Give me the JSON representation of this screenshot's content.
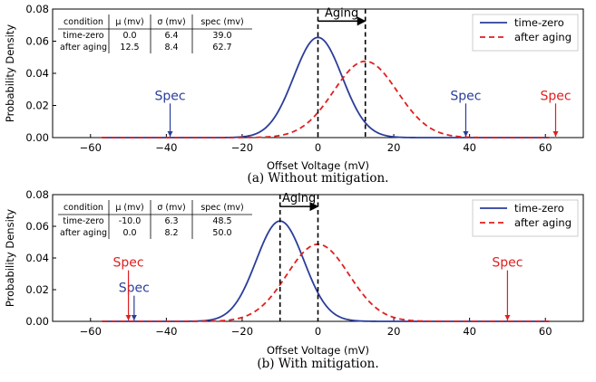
{
  "chart_data": [
    {
      "type": "line",
      "caption": "(a) Without mitigation.",
      "xlabel": "Offset Voltage (mV)",
      "ylabel": "Probability Density",
      "xlim": [
        -70,
        70
      ],
      "ylim": [
        0,
        0.08
      ],
      "xticks": [
        -60,
        -40,
        -20,
        0,
        20,
        40,
        60
      ],
      "yticks": [
        0.0,
        0.02,
        0.04,
        0.06,
        0.08
      ],
      "x_tick_labels": [
        "−60",
        "−40",
        "−20",
        "0",
        "20",
        "40",
        "60"
      ],
      "y_tick_labels": [
        "0.00",
        "0.02",
        "0.04",
        "0.06",
        "0.08"
      ],
      "legend_position": "top-right",
      "series": [
        {
          "name": "time-zero",
          "mu": 0.0,
          "sigma": 6.4,
          "color": "#2b3d9a",
          "style": "solid"
        },
        {
          "name": "after aging",
          "mu": 12.5,
          "sigma": 8.4,
          "color": "#e01f1f",
          "style": "dashed"
        }
      ],
      "table": {
        "headers": [
          "condition",
          "μ (mv)",
          "σ (mv)",
          "spec (mv)"
        ],
        "rows": [
          [
            "time-zero",
            "0.0",
            "6.4",
            "39.0"
          ],
          [
            "after aging",
            "12.5",
            "8.4",
            "62.7"
          ]
        ]
      },
      "vlines": [
        0.0,
        12.5
      ],
      "aging_label": "Aging",
      "aging_y": 0.0725,
      "spec_markers": [
        {
          "label": "Spec",
          "x": -39.0,
          "color": "#2b3d9a",
          "text_y": 0.0235
        },
        {
          "label": "Spec",
          "x": 39.0,
          "color": "#2b3d9a",
          "text_y": 0.0235
        },
        {
          "label": "Spec",
          "x": 62.7,
          "color": "#e01f1f",
          "text_y": 0.0235
        }
      ]
    },
    {
      "type": "line",
      "caption": "(b) With mitigation.",
      "xlabel": "Offset Voltage (mV)",
      "ylabel": "Probability Density",
      "xlim": [
        -70,
        70
      ],
      "ylim": [
        0,
        0.08
      ],
      "xticks": [
        -60,
        -40,
        -20,
        0,
        20,
        40,
        60
      ],
      "yticks": [
        0.0,
        0.02,
        0.04,
        0.06,
        0.08
      ],
      "x_tick_labels": [
        "−60",
        "−40",
        "−20",
        "0",
        "20",
        "40",
        "60"
      ],
      "y_tick_labels": [
        "0.00",
        "0.02",
        "0.04",
        "0.06",
        "0.08"
      ],
      "legend_position": "top-right",
      "series": [
        {
          "name": "time-zero",
          "mu": -10.0,
          "sigma": 6.3,
          "color": "#2b3d9a",
          "style": "solid"
        },
        {
          "name": "after aging",
          "mu": 0.0,
          "sigma": 8.2,
          "color": "#e01f1f",
          "style": "dashed"
        }
      ],
      "table": {
        "headers": [
          "condition",
          "μ (mv)",
          "σ (mv)",
          "spec (mv)"
        ],
        "rows": [
          [
            "time-zero",
            "-10.0",
            "6.3",
            "48.5"
          ],
          [
            "after aging",
            "0.0",
            "8.2",
            "50.0"
          ]
        ]
      },
      "vlines": [
        -10.0,
        0.0
      ],
      "aging_label": "Aging",
      "aging_y": 0.0725,
      "spec_markers": [
        {
          "label": "Spec",
          "x": -48.5,
          "color": "#2b3d9a",
          "text_y": 0.0185
        },
        {
          "label": "Spec",
          "x": -50.0,
          "color": "#e01f1f",
          "text_y": 0.0345
        },
        {
          "label": "Spec",
          "x": 50.0,
          "color": "#e01f1f",
          "text_y": 0.0345
        }
      ]
    }
  ]
}
